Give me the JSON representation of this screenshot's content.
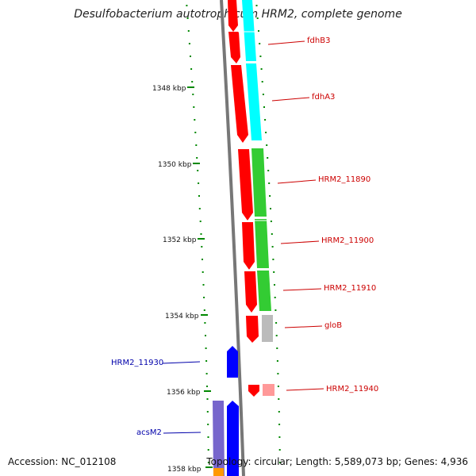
{
  "title": "Desulfobacterium autotrophicum HRM2, complete genome",
  "footer": {
    "accession": "Accession: NC_012108",
    "summary": "Topology: circular; Length: 5,589,073 bp; Genes: 4,936"
  },
  "scale": {
    "labels": [
      "1348 kbp",
      "1350 kbp",
      "1352 kbp",
      "1354 kbp",
      "1356 kbp",
      "1358 kbp"
    ]
  },
  "genes_right": [
    {
      "name": "fdhB3",
      "color": "#cc0000"
    },
    {
      "name": "fdhA3",
      "color": "#cc0000"
    },
    {
      "name": "HRM2_11890",
      "color": "#cc0000"
    },
    {
      "name": "HRM2_11900",
      "color": "#cc0000"
    },
    {
      "name": "HRM2_11910",
      "color": "#cc0000"
    },
    {
      "name": "gloB",
      "color": "#cc0000"
    },
    {
      "name": "HRM2_11940",
      "color": "#cc0000"
    }
  ],
  "genes_left": [
    {
      "name": "HRM2_11930",
      "color": "#0000aa"
    },
    {
      "name": "acsM2",
      "color": "#0000aa"
    }
  ],
  "colors": {
    "cds_forward": "#ff0000",
    "cds_reverse": "#0000ff",
    "cog_cyan": "#00ffff",
    "cog_green": "#33cc33",
    "cog_grey": "#bbbbbb",
    "cog_pink": "#ff9999",
    "cog_purple": "#7766cc",
    "cog_orange": "#ff9900",
    "backbone": "#777777",
    "ticks": "#008800"
  }
}
